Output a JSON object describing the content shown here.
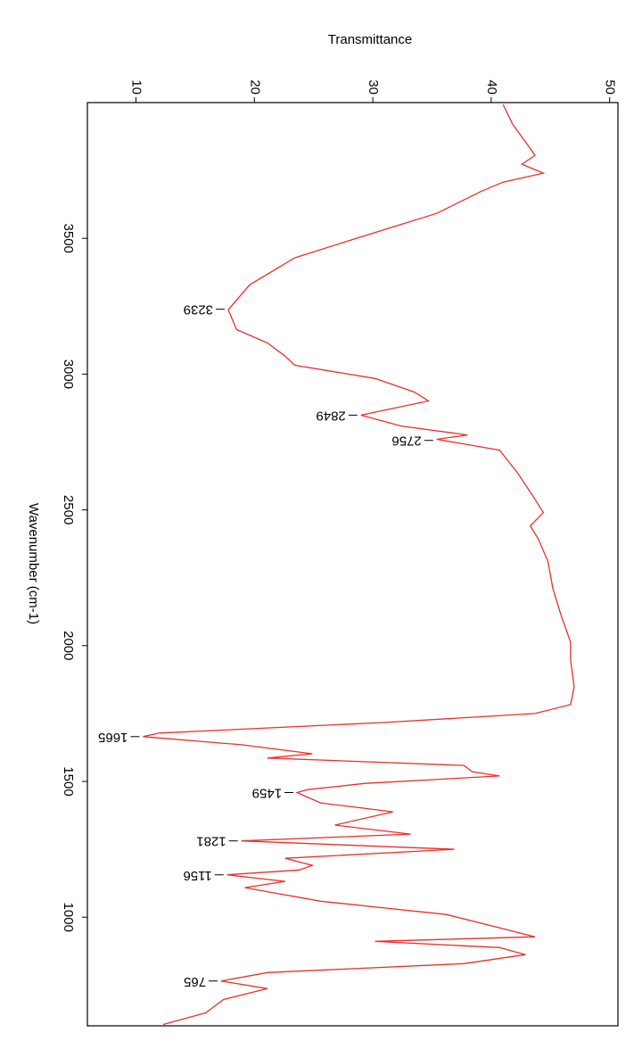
{
  "chart_data": {
    "type": "line",
    "ylabel": "Transmittance",
    "xlabel": "Wavenumber (cm-1)",
    "xlim": [
      4000,
      600
    ],
    "ylim": [
      5.9,
      50.7
    ],
    "xticks": [
      3500,
      3000,
      2500,
      2000,
      1500,
      1000
    ],
    "yticks": [
      10,
      20,
      30,
      40,
      50
    ],
    "x": [
      3993,
      3921,
      3855,
      3806,
      3773,
      3740,
      3707,
      3674,
      3592,
      3500,
      3428,
      3329,
      3237,
      3164,
      3115,
      3066,
      3033,
      2984,
      2934,
      2901,
      2849,
      2809,
      2776,
      2760,
      2720,
      2638,
      2539,
      2490,
      2441,
      2391,
      2309,
      2211,
      2112,
      2013,
      1947,
      1849,
      1783,
      1750,
      1717,
      1678,
      1665,
      1635,
      1602,
      1586,
      1559,
      1536,
      1520,
      1493,
      1470,
      1459,
      1421,
      1388,
      1339,
      1306,
      1281,
      1250,
      1217,
      1191,
      1174,
      1156,
      1132,
      1109,
      1059,
      1010,
      961,
      928,
      911,
      888,
      862,
      829,
      796,
      765,
      737,
      697,
      648,
      605
    ],
    "series": [
      {
        "color": "#e8302a",
        "values": [
          41.0,
          41.8,
          42.9,
          43.7,
          42.6,
          44.4,
          41.0,
          39.2,
          35.4,
          28.6,
          23.4,
          19.6,
          17.8,
          18.5,
          21.1,
          22.6,
          23.4,
          30.2,
          33.5,
          34.7,
          29.0,
          32.4,
          38.0,
          35.4,
          40.7,
          42.2,
          43.7,
          44.4,
          43.3,
          44.0,
          44.8,
          45.2,
          45.9,
          46.7,
          46.7,
          47.0,
          46.7,
          43.7,
          30.9,
          12.0,
          10.6,
          18.9,
          24.9,
          21.1,
          37.7,
          38.4,
          40.7,
          29.4,
          24.5,
          23.6,
          25.6,
          31.7,
          26.8,
          33.2,
          18.9,
          36.9,
          22.6,
          24.9,
          23.8,
          17.7,
          22.6,
          19.2,
          25.6,
          36.2,
          40.7,
          43.7,
          30.2,
          40.7,
          42.9,
          37.7,
          21.1,
          17.2,
          21.1,
          17.4,
          15.9,
          12.3
        ]
      }
    ],
    "annotations": [
      {
        "x": 3239,
        "y": 17.8
      },
      {
        "x": 2849,
        "y": 29.0
      },
      {
        "x": 2756,
        "y": 35.4
      },
      {
        "x": 1665,
        "y": 10.6
      },
      {
        "x": 1459,
        "y": 23.6
      },
      {
        "x": 1281,
        "y": 18.9
      },
      {
        "x": 1156,
        "y": 17.7
      },
      {
        "x": 765,
        "y": 17.2
      }
    ]
  }
}
